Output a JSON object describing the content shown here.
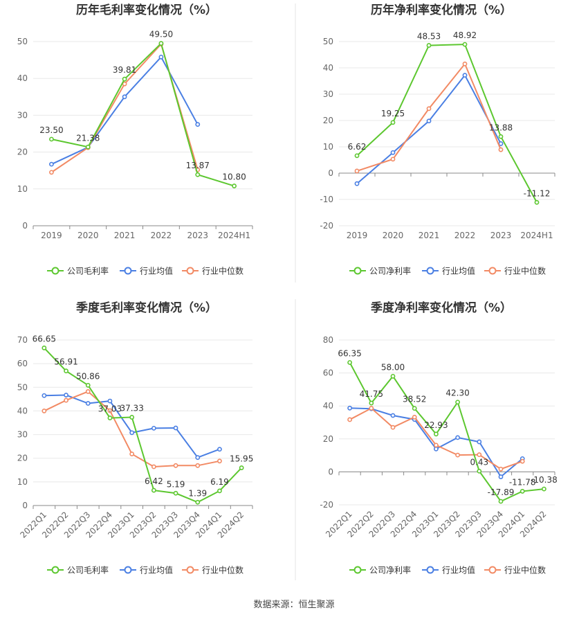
{
  "source": "数据来源：恒生聚源",
  "colors": {
    "company": "#5cc72f",
    "avg": "#4a7fe3",
    "median": "#f28a64"
  },
  "chart_data": [
    {
      "type": "line",
      "title": "历年毛利率变化情况（%）",
      "categories": [
        "2019",
        "2020",
        "2021",
        "2022",
        "2023",
        "2024H1"
      ],
      "ylim": [
        0,
        50
      ],
      "yticks": [
        0,
        10,
        20,
        30,
        40,
        50
      ],
      "grid": true,
      "legend_position": "bottom",
      "series": [
        {
          "name": "公司毛利率",
          "role": "company",
          "values": [
            23.5,
            21.38,
            39.81,
            49.5,
            13.87,
            10.8
          ],
          "labels": [
            "23.50",
            "21.38",
            "39.81",
            "49.50",
            "13.87",
            "10.80"
          ]
        },
        {
          "name": "行业均值",
          "role": "avg",
          "values": [
            16.7,
            21.3,
            35.0,
            45.8,
            27.5,
            null
          ]
        },
        {
          "name": "行业中位数",
          "role": "median",
          "values": [
            14.5,
            21.2,
            38.5,
            49.3,
            15.2,
            null
          ]
        }
      ]
    },
    {
      "type": "line",
      "title": "历年净利率变化情况（%）",
      "categories": [
        "2019",
        "2020",
        "2021",
        "2022",
        "2023",
        "2024H1"
      ],
      "ylim": [
        -20,
        50
      ],
      "yticks": [
        -20,
        -10,
        0,
        10,
        20,
        30,
        40,
        50
      ],
      "grid": true,
      "legend_position": "bottom",
      "series": [
        {
          "name": "公司净利率",
          "role": "company",
          "values": [
            6.62,
            19.25,
            48.53,
            48.92,
            13.88,
            -11.12
          ],
          "labels": [
            "6.62",
            "19.25",
            "48.53",
            "48.92",
            "13.88",
            "-11.12"
          ]
        },
        {
          "name": "行业均值",
          "role": "avg",
          "values": [
            -4.0,
            7.8,
            19.8,
            37.2,
            11.2,
            null
          ]
        },
        {
          "name": "行业中位数",
          "role": "median",
          "values": [
            0.8,
            5.3,
            24.5,
            41.5,
            8.9,
            null
          ]
        }
      ]
    },
    {
      "type": "line",
      "title": "季度毛利率变化情况（%）",
      "categories": [
        "2022Q1",
        "2022Q2",
        "2022Q3",
        "2022Q4",
        "2023Q1",
        "2023Q2",
        "2023Q3",
        "2023Q4",
        "2024Q1",
        "2024Q2"
      ],
      "ylim": [
        0,
        70
      ],
      "yticks": [
        0,
        10,
        20,
        30,
        40,
        50,
        60,
        70
      ],
      "grid": true,
      "legend_position": "bottom",
      "series": [
        {
          "name": "公司毛利率",
          "role": "company",
          "values": [
            66.65,
            56.91,
            50.86,
            37.03,
            37.33,
            6.42,
            5.19,
            1.39,
            6.19,
            15.95
          ],
          "labels": [
            "66.65",
            "56.91",
            "50.86",
            "37.03",
            "37.33",
            "6.42",
            "5.19",
            "1.39",
            "6.19",
            "15.95"
          ]
        },
        {
          "name": "行业均值",
          "role": "avg",
          "values": [
            46.5,
            46.7,
            43.2,
            44.2,
            30.8,
            32.7,
            32.8,
            20.3,
            23.8,
            null
          ]
        },
        {
          "name": "行业中位数",
          "role": "median",
          "values": [
            40.0,
            44.5,
            48.2,
            40.1,
            21.8,
            16.4,
            16.9,
            16.9,
            18.8,
            null
          ]
        }
      ]
    },
    {
      "type": "line",
      "title": "季度净利率变化情况（%）",
      "categories": [
        "2022Q1",
        "2022Q2",
        "2022Q3",
        "2022Q4",
        "2023Q1",
        "2023Q2",
        "2023Q3",
        "2023Q4",
        "2024Q1",
        "2024Q2"
      ],
      "ylim": [
        -20,
        80
      ],
      "yticks": [
        -20,
        0,
        20,
        40,
        60,
        80
      ],
      "grid": true,
      "legend_position": "bottom",
      "series": [
        {
          "name": "公司净利率",
          "role": "company",
          "values": [
            66.35,
            41.75,
            58.0,
            38.52,
            22.93,
            42.3,
            0.43,
            -17.89,
            -11.78,
            -10.38
          ],
          "labels": [
            "66.35",
            "41.75",
            "58.00",
            "38.52",
            "22.93",
            "42.30",
            "0.43",
            "-17.89",
            "-11.78",
            "-10.38"
          ]
        },
        {
          "name": "行业均值",
          "role": "avg",
          "values": [
            38.7,
            38.3,
            34.2,
            31.8,
            13.9,
            20.8,
            18.2,
            -3.0,
            8.0,
            null
          ]
        },
        {
          "name": "行业中位数",
          "role": "median",
          "values": [
            31.7,
            38.6,
            27.0,
            33.2,
            16.2,
            10.2,
            10.4,
            1.7,
            6.4,
            null
          ]
        }
      ]
    }
  ]
}
